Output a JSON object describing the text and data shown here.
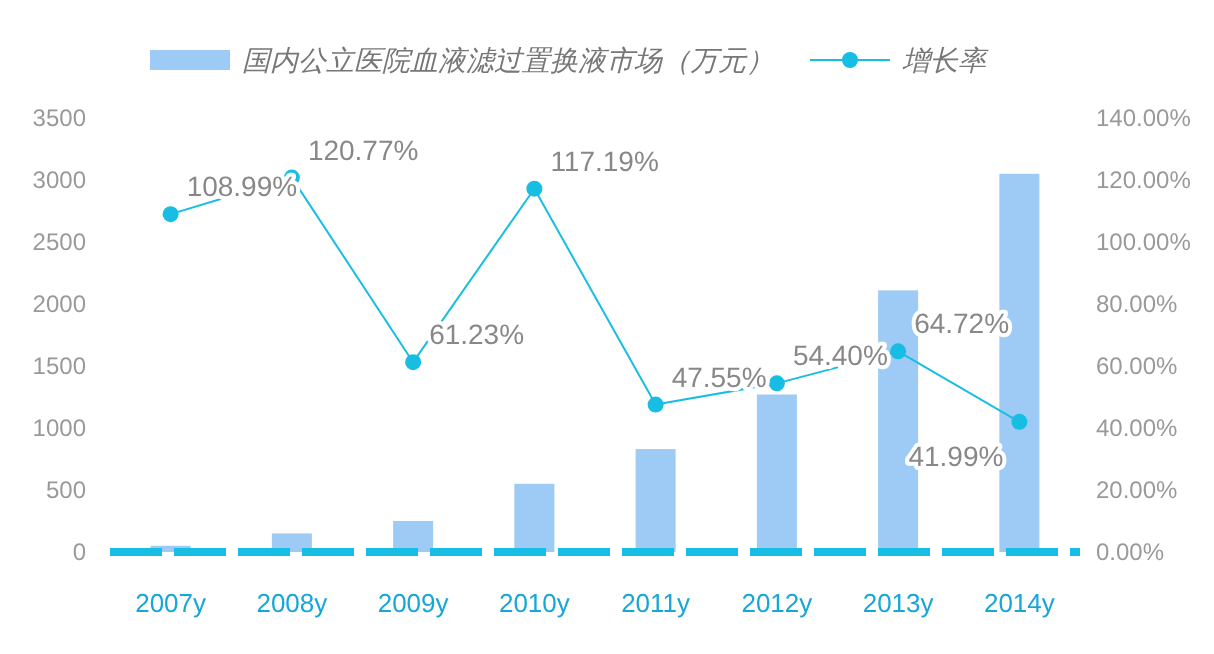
{
  "chart_data": {
    "type": "bar",
    "categories": [
      "2007y",
      "2008y",
      "2009y",
      "2010y",
      "2011y",
      "2012y",
      "2013y",
      "2014y"
    ],
    "series": [
      {
        "name": "国内公立医院血液滤过置换液市场（万元）",
        "color": "#9dcbf6",
        "values": [
          50,
          150,
          250,
          550,
          830,
          1270,
          2110,
          3050
        ]
      },
      {
        "name": "增长率",
        "type": "line",
        "axis": "y2",
        "color": "#17bde3",
        "marker": "circle",
        "values": [
          108.99,
          120.77,
          61.23,
          117.19,
          47.55,
          54.4,
          64.72,
          41.99
        ],
        "value_labels": [
          "108.99%",
          "120.77%",
          "61.23%",
          "117.19%",
          "47.55%",
          "54.40%",
          "64.72%",
          "41.99%"
        ]
      }
    ],
    "ylim": [
      0,
      3500
    ],
    "yticks": [
      0,
      500,
      1000,
      1500,
      2000,
      2500,
      3000,
      3500
    ],
    "y2lim": [
      0,
      140
    ],
    "y2ticks": [
      {
        "value": 0,
        "label": "0.00%"
      },
      {
        "value": 20,
        "label": "20.00%"
      },
      {
        "value": 40,
        "label": "40.00%"
      },
      {
        "value": 60,
        "label": "60.00%"
      },
      {
        "value": 80,
        "label": "80.00%"
      },
      {
        "value": 100,
        "label": "100.00%"
      },
      {
        "value": 120,
        "label": "120.00%"
      },
      {
        "value": 140,
        "label": "140.00%"
      }
    ],
    "legend": "top",
    "grid": false
  }
}
